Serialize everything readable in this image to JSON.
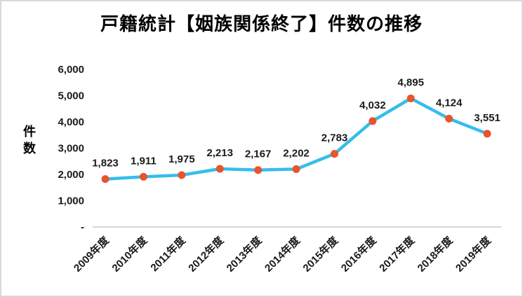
{
  "title": "戸籍統計【姻族関係終了】件数の推移",
  "colors": {
    "line": "#35bdec",
    "marker": "#e8542c",
    "text": "#1a1a1a",
    "axis": "#c9c9c9",
    "frame_border": "#d9d9d9"
  },
  "chart_data": {
    "type": "line",
    "title": "戸籍統計【姻族関係終了】件数の推移",
    "categories": [
      "2009年度",
      "2010年度",
      "2011年度",
      "2012年度",
      "2013年度",
      "2014年度",
      "2015年度",
      "2016年度",
      "2017年度",
      "2018年度",
      "2019年度"
    ],
    "values": [
      1823,
      1911,
      1975,
      2213,
      2167,
      2202,
      2783,
      4032,
      4895,
      4124,
      3551
    ],
    "data_labels": [
      "1,823",
      "1,911",
      "1,975",
      "2,213",
      "2,167",
      "2,202",
      "2,783",
      "4,032",
      "4,895",
      "4,124",
      "3,551"
    ],
    "xlabel": "",
    "ylabel": "件数",
    "ylim": [
      0,
      6000
    ],
    "ytick_interval": 1000,
    "ytick_labels": [
      "-",
      "1,000",
      "2,000",
      "3,000",
      "4,000",
      "5,000",
      "6,000"
    ],
    "grid": false,
    "legend": "none",
    "marker_style": "circle",
    "x_label_rotation": -45
  }
}
